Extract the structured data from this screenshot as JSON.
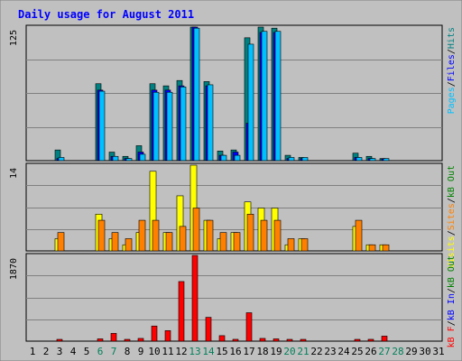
{
  "chart_data": {
    "type": "bar",
    "title": "Daily usage for August 2011",
    "days": [
      "1",
      "2",
      "3",
      "4",
      "5",
      "6",
      "7",
      "8",
      "9",
      "10",
      "11",
      "12",
      "13",
      "14",
      "15",
      "16",
      "17",
      "18",
      "19",
      "20",
      "21",
      "22",
      "23",
      "24",
      "25",
      "26",
      "27",
      "28",
      "29",
      "30",
      "31"
    ],
    "weekend_days": [
      "6",
      "7",
      "13",
      "14",
      "20",
      "21",
      "27",
      "28"
    ],
    "top_panel": {
      "max_label": "125",
      "ymax": 125,
      "legend": [
        {
          "key": "pages",
          "text": "Pages",
          "color": "#00c0ff"
        },
        {
          "key": "sep1",
          "text": "/",
          "color": "#000000"
        },
        {
          "key": "files",
          "text": "Files",
          "color": "#0000ff"
        },
        {
          "key": "sep2",
          "text": "/",
          "color": "#000000"
        },
        {
          "key": "hits",
          "text": "Hits",
          "color": "#008080"
        }
      ],
      "series": [
        {
          "key": "hits",
          "color": "#008080",
          "values": [
            0,
            0,
            10,
            0,
            0,
            72,
            8,
            4,
            14,
            72,
            70,
            75,
            125,
            74,
            9,
            10,
            115,
            125,
            124,
            5,
            3,
            0,
            0,
            0,
            7,
            4,
            2,
            0,
            0,
            0,
            0
          ]
        },
        {
          "key": "files",
          "color": "#0000ff",
          "values": [
            0,
            0,
            2,
            0,
            0,
            66,
            4,
            2,
            8,
            66,
            66,
            70,
            125,
            70,
            5,
            8,
            35,
            120,
            120,
            2,
            2,
            0,
            0,
            0,
            3,
            2,
            1,
            0,
            0,
            0,
            0
          ]
        },
        {
          "key": "pages",
          "color": "#00c0ff",
          "values": [
            0,
            0,
            3,
            0,
            0,
            65,
            4,
            2,
            6,
            64,
            64,
            69,
            124,
            71,
            5,
            5,
            109,
            121,
            121,
            3,
            3,
            0,
            0,
            0,
            3,
            2,
            2,
            0,
            0,
            0,
            0
          ]
        }
      ]
    },
    "mid_panel": {
      "max_label": "14",
      "ymax": 14,
      "legend": [
        {
          "key": "visits",
          "text": "Visits",
          "color": "#ffff00"
        },
        {
          "key": "sep1",
          "text": "/",
          "color": "#000000"
        },
        {
          "key": "sites",
          "text": "Sites",
          "color": "#ff8000"
        },
        {
          "key": "sep2",
          "text": "/",
          "color": "#000000"
        },
        {
          "key": "kbout",
          "text": "kB Out",
          "color": "#008000"
        }
      ],
      "series": [
        {
          "key": "visits",
          "color": "#ffff00",
          "values": [
            0,
            0,
            2,
            0,
            0,
            6,
            2,
            1,
            3,
            13,
            3,
            9,
            14,
            5,
            2,
            3,
            8,
            7,
            7,
            1,
            2,
            0,
            0,
            0,
            4,
            1,
            1,
            0,
            0,
            0,
            0
          ]
        },
        {
          "key": "sites",
          "color": "#ff8000",
          "values": [
            0,
            0,
            3,
            0,
            0,
            5,
            3,
            2,
            5,
            5,
            3,
            4,
            7,
            5,
            3,
            3,
            6,
            5,
            5,
            2,
            2,
            0,
            0,
            0,
            5,
            1,
            1,
            0,
            0,
            0,
            0
          ]
        }
      ]
    },
    "bottom_panel": {
      "max_label": "1870",
      "ymax": 1870,
      "legend": [
        {
          "key": "kbf",
          "text": "kB F",
          "color": "#ff0000"
        },
        {
          "key": "sep1",
          "text": "/",
          "color": "#000000"
        },
        {
          "key": "kbin",
          "text": "kB In",
          "color": "#0000ff"
        },
        {
          "key": "sep2",
          "text": "/",
          "color": "#000000"
        },
        {
          "key": "kbout",
          "text": "kB Out",
          "color": "#008000"
        }
      ],
      "series": [
        {
          "key": "kbf",
          "color": "#ff0000",
          "values": [
            0,
            0,
            30,
            0,
            0,
            50,
            170,
            30,
            60,
            330,
            230,
            1300,
            1870,
            520,
            120,
            40,
            620,
            60,
            50,
            30,
            30,
            0,
            0,
            0,
            30,
            40,
            110,
            0,
            0,
            0,
            0
          ]
        }
      ]
    }
  }
}
